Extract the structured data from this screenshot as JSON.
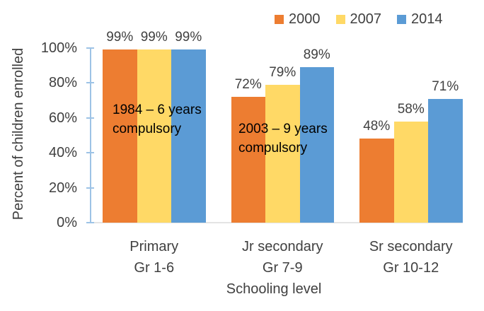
{
  "chart_data": {
    "type": "bar",
    "title": "",
    "xlabel": "Schooling level",
    "ylabel": "Percent of children enrolled",
    "ylim": [
      0,
      100
    ],
    "yticks": [
      0,
      20,
      40,
      60,
      80,
      100
    ],
    "ytick_suffix": "%",
    "grid": false,
    "legend_position": "top-right",
    "data_labels": true,
    "categories": [
      {
        "label": "Primary",
        "grades": "Gr 1-6"
      },
      {
        "label": "Jr secondary",
        "grades": "Gr 7-9"
      },
      {
        "label": "Sr secondary",
        "grades": "Gr 10-12"
      }
    ],
    "series": [
      {
        "name": "2000",
        "color": "#ED7D31",
        "values": [
          99,
          72,
          48
        ]
      },
      {
        "name": "2007",
        "color": "#FFD966",
        "values": [
          99,
          79,
          58
        ]
      },
      {
        "name": "2014",
        "color": "#5B9BD5",
        "values": [
          99,
          89,
          71
        ]
      }
    ],
    "annotations": [
      {
        "text": "1984 – 6 years\ncompulsory"
      },
      {
        "text": "2003 – 9 years\ncompulsory"
      }
    ],
    "colors": {
      "axis_line": "#9DC3E6",
      "baseline": "#E4E4E4",
      "text": "#404040",
      "annotation_text": "#000000"
    }
  }
}
